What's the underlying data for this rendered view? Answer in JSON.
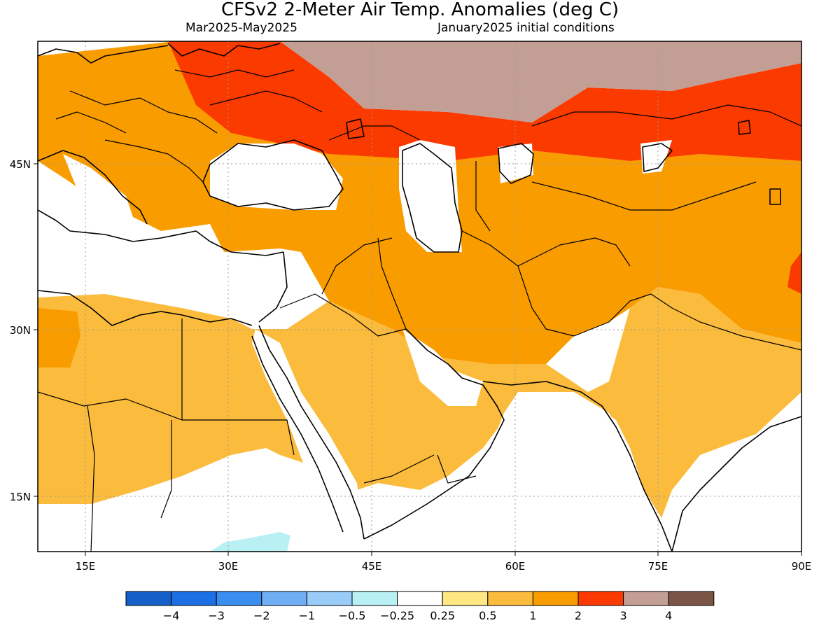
{
  "header": {
    "title": "CFSv2 2-Meter Air Temp. Anomalies (deg C)",
    "period": "Mar2025-May2025",
    "initial_conditions": "January2025 initial conditions"
  },
  "map": {
    "lon_range": [
      10,
      90
    ],
    "lat_range": [
      10,
      55
    ],
    "lon_tick_labels": [
      "15E",
      "30E",
      "45E",
      "60E",
      "75E",
      "90E"
    ],
    "lat_tick_labels": [
      "45N",
      "30N",
      "15N"
    ],
    "grid": "dotted",
    "projection": "equirectangular"
  },
  "colorbar": {
    "tick_labels": [
      "-4",
      "-3",
      "-2",
      "-1",
      "-0.5",
      "-0.25",
      "0.25",
      "0.5",
      "1",
      "2",
      "3",
      "4"
    ],
    "colors": [
      "#1560c8",
      "#1d6fe4",
      "#3a8ef0",
      "#6eaef5",
      "#99cdf7",
      "#b8f0f3",
      "#ffffff",
      "#fde882",
      "#fbbb3c",
      "#f99c00",
      "#fb3a00",
      "#c39e94",
      "#7a5545"
    ],
    "position": "bottom"
  },
  "colors": {
    "anomaly_lt_neg025": "#b8f0f3",
    "anomaly_025_05": "#fde882",
    "anomaly_05_1": "#fbbb3c",
    "anomaly_1_2": "#f99c00",
    "anomaly_2_3": "#fb3a00",
    "anomaly_3_4": "#c39e94"
  }
}
